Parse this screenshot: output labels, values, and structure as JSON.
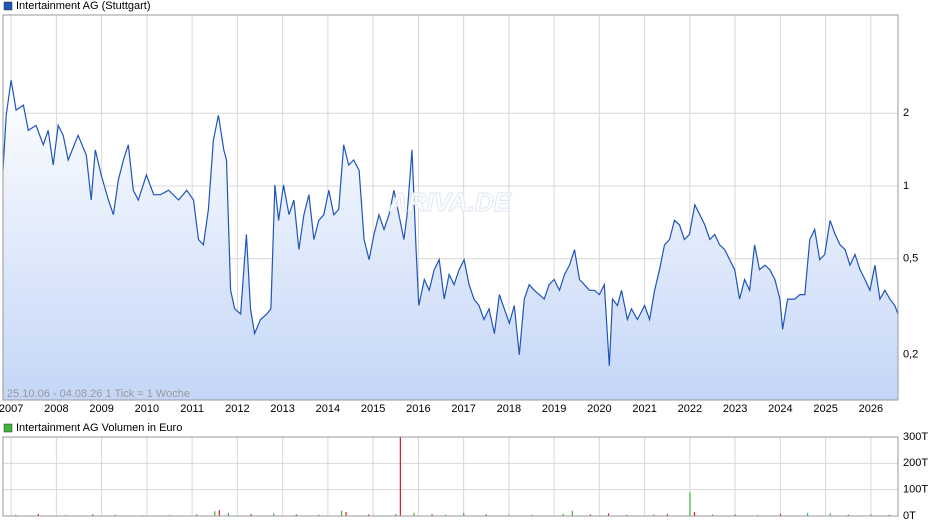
{
  "chart_data": [
    {
      "type": "area",
      "yscale": "log",
      "grid": true,
      "legend": "top-left",
      "annotation": "25.10.06 - 04.08.26   1 Tick = 1 Woche",
      "watermark": "ARIVA.DE",
      "xlim": [
        2006.82,
        2026.6
      ],
      "xticks": [
        2007,
        2008,
        2009,
        2010,
        2011,
        2012,
        2013,
        2014,
        2015,
        2016,
        2017,
        2018,
        2019,
        2020,
        2021,
        2022,
        2023,
        2024,
        2025,
        2026
      ],
      "ylim": [
        0.13,
        5.1
      ],
      "yticks": [
        {
          "value": 0.2,
          "label": "0,2"
        },
        {
          "value": 0.5,
          "label": "0,5"
        },
        1,
        2
      ],
      "x": [
        2006.82,
        2006.89,
        2007.0,
        2007.11,
        2007.27,
        2007.38,
        2007.55,
        2007.71,
        2007.82,
        2007.93,
        2008.04,
        2008.15,
        2008.26,
        2008.48,
        2008.66,
        2008.77,
        2008.86,
        2008.99,
        2009.15,
        2009.26,
        2009.37,
        2009.48,
        2009.59,
        2009.7,
        2009.81,
        2009.99,
        2010.15,
        2010.3,
        2010.48,
        2010.7,
        2010.88,
        2011.03,
        2011.14,
        2011.25,
        2011.36,
        2011.47,
        2011.58,
        2011.7,
        2011.76,
        2011.85,
        2011.94,
        2012.07,
        2012.2,
        2012.29,
        2012.38,
        2012.51,
        2012.65,
        2012.74,
        2012.83,
        2012.91,
        2013.02,
        2013.14,
        2013.25,
        2013.36,
        2013.47,
        2013.58,
        2013.69,
        2013.8,
        2013.91,
        2014.02,
        2014.13,
        2014.24,
        2014.35,
        2014.46,
        2014.57,
        2014.69,
        2014.8,
        2014.91,
        2015.02,
        2015.13,
        2015.24,
        2015.35,
        2015.46,
        2015.57,
        2015.68,
        2015.75,
        2015.86,
        2015.95,
        2016.01,
        2016.13,
        2016.24,
        2016.35,
        2016.46,
        2016.57,
        2016.68,
        2016.79,
        2016.9,
        2017.01,
        2017.12,
        2017.23,
        2017.34,
        2017.45,
        2017.56,
        2017.68,
        2017.79,
        2017.9,
        2018.01,
        2018.12,
        2018.23,
        2018.34,
        2018.45,
        2018.56,
        2018.67,
        2018.78,
        2018.89,
        2019.0,
        2019.12,
        2019.23,
        2019.34,
        2019.45,
        2019.56,
        2019.67,
        2019.78,
        2019.89,
        2020.0,
        2020.11,
        2020.22,
        2020.29,
        2020.4,
        2020.49,
        2020.62,
        2020.71,
        2020.84,
        2021.0,
        2021.11,
        2021.22,
        2021.33,
        2021.44,
        2021.55,
        2021.66,
        2021.77,
        2021.88,
        2021.99,
        2022.11,
        2022.22,
        2022.33,
        2022.44,
        2022.55,
        2022.66,
        2022.77,
        2022.88,
        2022.99,
        2023.1,
        2023.21,
        2023.32,
        2023.43,
        2023.54,
        2023.66,
        2023.77,
        2023.88,
        2023.99,
        2024.05,
        2024.16,
        2024.32,
        2024.43,
        2024.54,
        2024.65,
        2024.76,
        2024.87,
        2024.98,
        2025.1,
        2025.21,
        2025.32,
        2025.43,
        2025.54,
        2025.65,
        2025.76,
        2025.87,
        2025.98,
        2026.09,
        2026.2,
        2026.31,
        2026.42,
        2026.53,
        2026.6
      ],
      "series": [
        {
          "name": "Intertainment AG (Stuttgart)",
          "color": "#1f55b8",
          "fill": "#c4d6f7",
          "values": [
            1.16,
            1.96,
            2.74,
            2.06,
            2.16,
            1.7,
            1.78,
            1.48,
            1.7,
            1.22,
            1.78,
            1.62,
            1.28,
            1.62,
            1.34,
            0.875,
            1.41,
            1.11,
            0.875,
            0.76,
            1.06,
            1.28,
            1.48,
            0.96,
            0.875,
            1.11,
            0.92,
            0.92,
            0.96,
            0.875,
            0.96,
            0.875,
            0.6,
            0.57,
            0.8,
            1.55,
            1.96,
            1.41,
            1.28,
            0.37,
            0.31,
            0.295,
            0.63,
            0.31,
            0.245,
            0.28,
            0.295,
            0.31,
            1.01,
            0.72,
            1.01,
            0.76,
            0.875,
            0.545,
            0.76,
            0.92,
            0.6,
            0.72,
            0.76,
            0.96,
            0.76,
            0.8,
            1.48,
            1.22,
            1.28,
            1.16,
            0.6,
            0.495,
            0.63,
            0.76,
            0.66,
            0.76,
            0.96,
            0.76,
            0.6,
            0.76,
            1.41,
            0.545,
            0.32,
            0.41,
            0.37,
            0.45,
            0.495,
            0.34,
            0.43,
            0.39,
            0.45,
            0.495,
            0.39,
            0.34,
            0.32,
            0.28,
            0.31,
            0.245,
            0.355,
            0.31,
            0.27,
            0.32,
            0.2,
            0.34,
            0.39,
            0.37,
            0.355,
            0.34,
            0.39,
            0.41,
            0.37,
            0.43,
            0.47,
            0.545,
            0.41,
            0.39,
            0.37,
            0.37,
            0.355,
            0.39,
            0.18,
            0.34,
            0.32,
            0.37,
            0.28,
            0.31,
            0.28,
            0.32,
            0.28,
            0.37,
            0.45,
            0.57,
            0.6,
            0.72,
            0.69,
            0.6,
            0.63,
            0.835,
            0.76,
            0.69,
            0.6,
            0.63,
            0.57,
            0.545,
            0.495,
            0.45,
            0.34,
            0.41,
            0.37,
            0.57,
            0.45,
            0.47,
            0.45,
            0.41,
            0.34,
            0.255,
            0.34,
            0.34,
            0.355,
            0.355,
            0.6,
            0.66,
            0.495,
            0.52,
            0.72,
            0.63,
            0.57,
            0.545,
            0.47,
            0.52,
            0.45,
            0.41,
            0.37,
            0.47,
            0.34,
            0.37,
            0.34,
            0.32,
            0.295
          ]
        }
      ]
    },
    {
      "type": "bar",
      "grid": true,
      "legend": "top-left",
      "xlim": [
        2006.82,
        2026.6
      ],
      "ylim": [
        0,
        300000
      ],
      "yticks": [
        {
          "value": 0,
          "label": "0T"
        },
        {
          "value": 100000,
          "label": "100T"
        },
        {
          "value": 200000,
          "label": "200T"
        },
        {
          "value": 300000,
          "label": "300T"
        }
      ],
      "x": [
        2007.1,
        2007.6,
        2008.2,
        2008.8,
        2009.3,
        2009.9,
        2010.5,
        2011.1,
        2011.5,
        2011.6,
        2011.8,
        2012.3,
        2012.8,
        2013.3,
        2013.8,
        2014.3,
        2014.4,
        2014.9,
        2015.5,
        2015.6,
        2015.9,
        2016.3,
        2016.6,
        2017.0,
        2017.5,
        2018.0,
        2018.5,
        2019.2,
        2019.4,
        2019.8,
        2020.2,
        2020.6,
        2021.2,
        2021.5,
        2022.0,
        2022.1,
        2022.5,
        2023.0,
        2023.5,
        2024.0,
        2024.6,
        2025.1,
        2025.5,
        2026.0,
        2026.4
      ],
      "series": [
        {
          "name": "Intertainment AG Volumen in Euro",
          "color": "#3cb43c",
          "values": [
            5000,
            8000,
            4000,
            6000,
            5000,
            3000,
            4000,
            6000,
            18000,
            22000,
            12000,
            8000,
            10000,
            6000,
            5000,
            20000,
            15000,
            6000,
            8000,
            300000,
            12000,
            7000,
            5000,
            12000,
            6000,
            5000,
            4000,
            8000,
            20000,
            6000,
            10000,
            5000,
            6000,
            8000,
            90000,
            15000,
            6000,
            5000,
            4000,
            8000,
            12000,
            10000,
            5000,
            6000,
            4000
          ],
          "colors": [
            "#3cb43c",
            "#d42020",
            "#3cb43c",
            "#d42020",
            "#3cb43c",
            "#d42020",
            "#3cb43c",
            "#d42020",
            "#3cb43c",
            "#d42020",
            "#3cb43c",
            "#d42020",
            "#3cb43c",
            "#d42020",
            "#3cb43c",
            "#3cb43c",
            "#d42020",
            "#d42020",
            "#3cb43c",
            "#d42020",
            "#3cb43c",
            "#d42020",
            "#3cb43c",
            "#3cb43c",
            "#d42020",
            "#3cb43c",
            "#d42020",
            "#3cb43c",
            "#3cb43c",
            "#d42020",
            "#d42020",
            "#3cb43c",
            "#3cb43c",
            "#d42020",
            "#3cb43c",
            "#d42020",
            "#3cb43c",
            "#d42020",
            "#3cb43c",
            "#d42020",
            "#3cb43c",
            "#3cb43c",
            "#d42020",
            "#3cb43c",
            "#d42020"
          ]
        }
      ]
    }
  ]
}
